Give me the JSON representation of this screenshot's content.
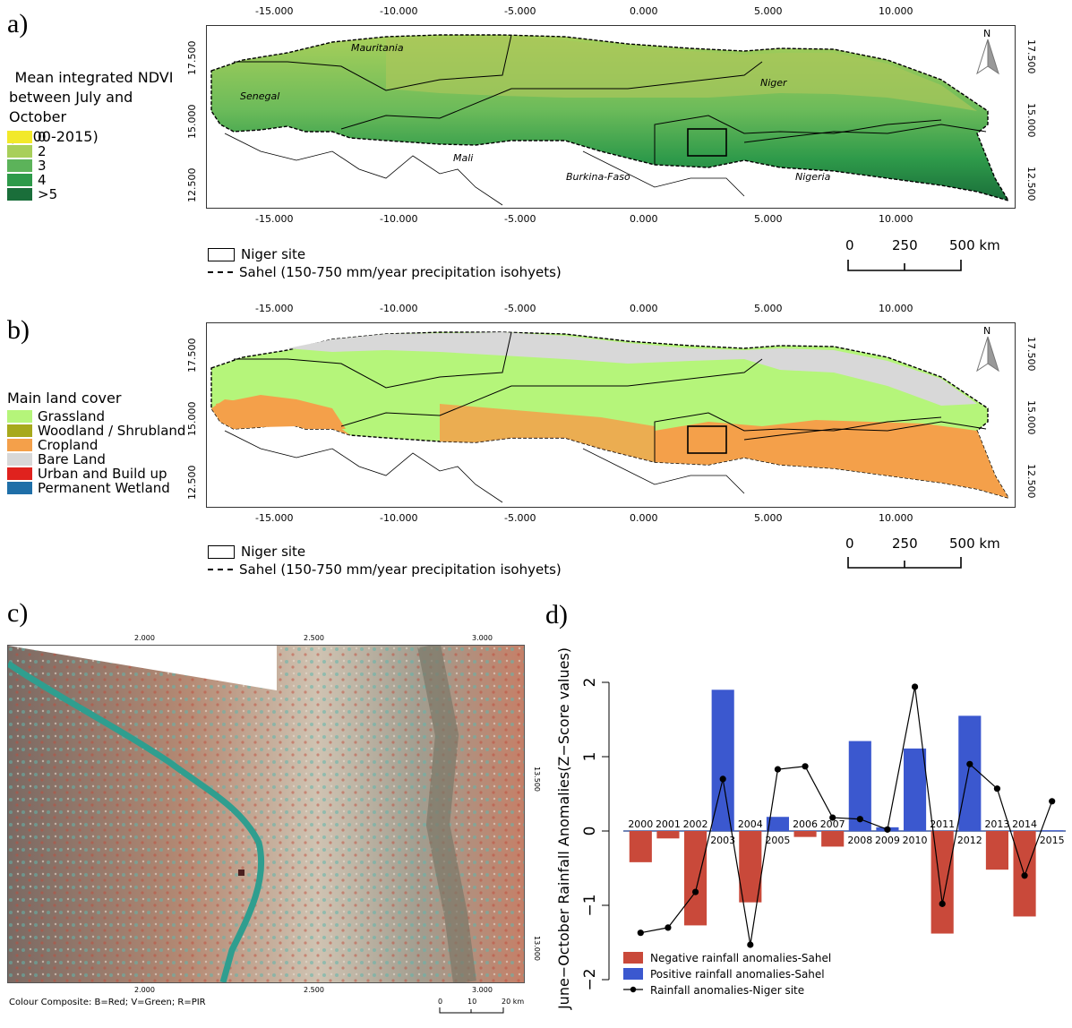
{
  "panel_a": {
    "letter": "a)",
    "legend_title_lines": [
      "Mean integrated NDVI",
      "between July and October",
      "(2000-2015)"
    ],
    "legend_items": [
      {
        "label": "0",
        "color": "#f2e92a"
      },
      {
        "label": "2",
        "color": "#a8cf5a"
      },
      {
        "label": "3",
        "color": "#5cb35a"
      },
      {
        "label": "4",
        "color": "#2e9a4a"
      },
      {
        "label": ">5",
        "color": "#1a6e3a"
      }
    ],
    "top_ticks": [
      "-15.000",
      "-10.000",
      "-5.000",
      "0.000",
      "5.000",
      "10.000"
    ],
    "left_ticks": [
      "17.500",
      "15.000",
      "12.500"
    ],
    "right_ticks": [
      "17.500",
      "15.000",
      "12.500"
    ],
    "country_labels": [
      "Mauritania",
      "Senegal",
      "Niger",
      "Mali",
      "Burkina-Faso",
      "Nigeria"
    ],
    "site_label": "Niger site",
    "sahel_label": "Sahel (150-750 mm/year precipitation isohyets)",
    "scale_labels": [
      "0",
      "250",
      "500  km"
    ],
    "north": "N"
  },
  "panel_b": {
    "letter": "b)",
    "legend_title": "Main land cover",
    "legend_items": [
      {
        "label": "Grassland",
        "color": "#b5f57a"
      },
      {
        "label": "Woodland / Shrubland",
        "color": "#a7a91c"
      },
      {
        "label": "Cropland",
        "color": "#f4a04a"
      },
      {
        "label": "Bare Land",
        "color": "#d8d8d8"
      },
      {
        "label": "Urban and Build up",
        "color": "#e0221e"
      },
      {
        "label": "Permanent Wetland",
        "color": "#1f6fa8"
      }
    ],
    "top_ticks": [
      "-15.000",
      "-10.000",
      "-5.000",
      "0.000",
      "5.000",
      "10.000"
    ],
    "left_ticks": [
      "17.500",
      "15.000",
      "12.500"
    ],
    "right_ticks": [
      "17.500",
      "15.000",
      "12.500"
    ],
    "site_label": "Niger site",
    "sahel_label": "Sahel (150-750 mm/year precipitation isohyets)",
    "scale_labels": [
      "0",
      "250",
      "500  km"
    ],
    "north": "N"
  },
  "panel_c": {
    "letter": "c)",
    "top_ticks": [
      "2.000",
      "2.500",
      "3.000"
    ],
    "bottom_ticks": [
      "2.000",
      "2.500",
      "3.000"
    ],
    "right_ticks": [
      "13.500",
      "13.000"
    ],
    "caption": "Colour Composite: B=Red; V=Green; R=PIR",
    "scale_labels": [
      "0",
      "10",
      "20 km"
    ]
  },
  "chart_data": {
    "type": "bar",
    "letter": "d)",
    "ylabel": "June−October Rainfall Anomalies(Z−Score values)",
    "ylim": [
      -2.3,
      2.3
    ],
    "yticks": [
      "−2",
      "−1",
      "0",
      "1",
      "2"
    ],
    "categories": [
      "2000",
      "2001",
      "2002",
      "2003",
      "2004",
      "2005",
      "2006",
      "2007",
      "2008",
      "2009",
      "2010",
      "2011",
      "2012",
      "2013",
      "2014",
      "2015"
    ],
    "series": [
      {
        "name": "Negative rainfall anomalies-Sahel",
        "color": "#c9493a",
        "values": [
          -0.42,
          -0.1,
          -1.27,
          0,
          -0.96,
          0,
          -0.08,
          -0.21,
          0,
          0,
          0,
          -1.38,
          0,
          -0.52,
          -1.15,
          0
        ]
      },
      {
        "name": "Positive rainfall anomalies-Sahel",
        "color": "#3b58cf",
        "values": [
          0,
          0,
          0,
          1.9,
          0,
          0.19,
          0,
          0,
          1.21,
          0.05,
          1.11,
          0,
          1.55,
          0,
          0,
          0.01
        ]
      },
      {
        "name": "Rainfall anomalies-Niger site",
        "color": "#000000",
        "values": [
          -1.37,
          -1.3,
          -0.82,
          0.7,
          -1.53,
          0.83,
          0.87,
          0.18,
          0.16,
          0.02,
          1.94,
          -0.98,
          0.9,
          0.57,
          -0.6,
          0.4
        ]
      }
    ],
    "legend_position": "bottom-left"
  }
}
